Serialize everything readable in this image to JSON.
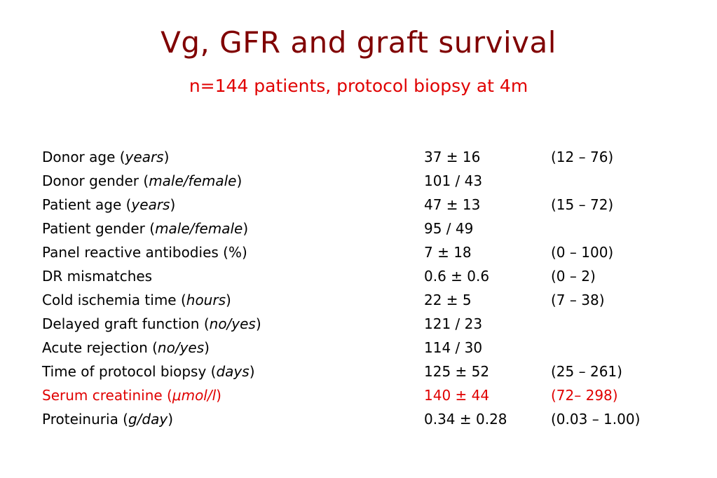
{
  "slide": {
    "title": "Vg, GFR and graft survival",
    "subtitle": "n=144 patients, protocol biopsy at 4m"
  },
  "rows": [
    {
      "label": "Donor age (",
      "unit": "years",
      "close": ")",
      "value": "37 ± 16",
      "range": "(12 – 76)",
      "highlight": false
    },
    {
      "label": "Donor gender (",
      "unit": "male/female",
      "close": ")",
      "value": "101 / 43",
      "range": "",
      "highlight": false
    },
    {
      "label": "Patient age (",
      "unit": "years",
      "close": ")",
      "value": "47 ± 13",
      "range": "(15 – 72)",
      "highlight": false
    },
    {
      "label": "Patient gender (",
      "unit": "male/female",
      "close": ")",
      "value": "95 / 49",
      "range": "",
      "highlight": false
    },
    {
      "label": "Panel reactive antibodies (%)",
      "unit": "",
      "close": "",
      "value": "7 ± 18",
      "range": "(0 – 100)",
      "highlight": false
    },
    {
      "label": "DR mismatches",
      "unit": "",
      "close": "",
      "value": "0.6 ± 0.6",
      "range": "(0 – 2)",
      "highlight": false
    },
    {
      "label": "Cold ischemia time (",
      "unit": "hours",
      "close": ")",
      "value": "22 ± 5",
      "range": "(7 – 38)",
      "highlight": false
    },
    {
      "label": "Delayed graft function (",
      "unit": "no/yes",
      "close": ")",
      "value": "121 / 23",
      "range": "",
      "highlight": false
    },
    {
      "label": "Acute rejection (",
      "unit": "no/yes",
      "close": ")",
      "value": "114 / 30",
      "range": "",
      "highlight": false
    },
    {
      "label": "Time of protocol biopsy (",
      "unit": "days",
      "close": ")",
      "value": "125 ± 52",
      "range": "(25 – 261)",
      "highlight": false
    },
    {
      "label": "Serum creatinine (",
      "unit": "μmol/l",
      "close": ")",
      "value": "140 ± 44",
      "range": "(72– 298)",
      "highlight": true
    },
    {
      "label": "Proteinuria (",
      "unit": "g/day",
      "close": ")",
      "value": "0.34 ± 0.28",
      "range": "(0.03 – 1.00)",
      "highlight": false
    }
  ],
  "colors": {
    "title": "#800000",
    "subtitle": "#e00000",
    "text": "#000000",
    "highlight": "#e00000"
  }
}
